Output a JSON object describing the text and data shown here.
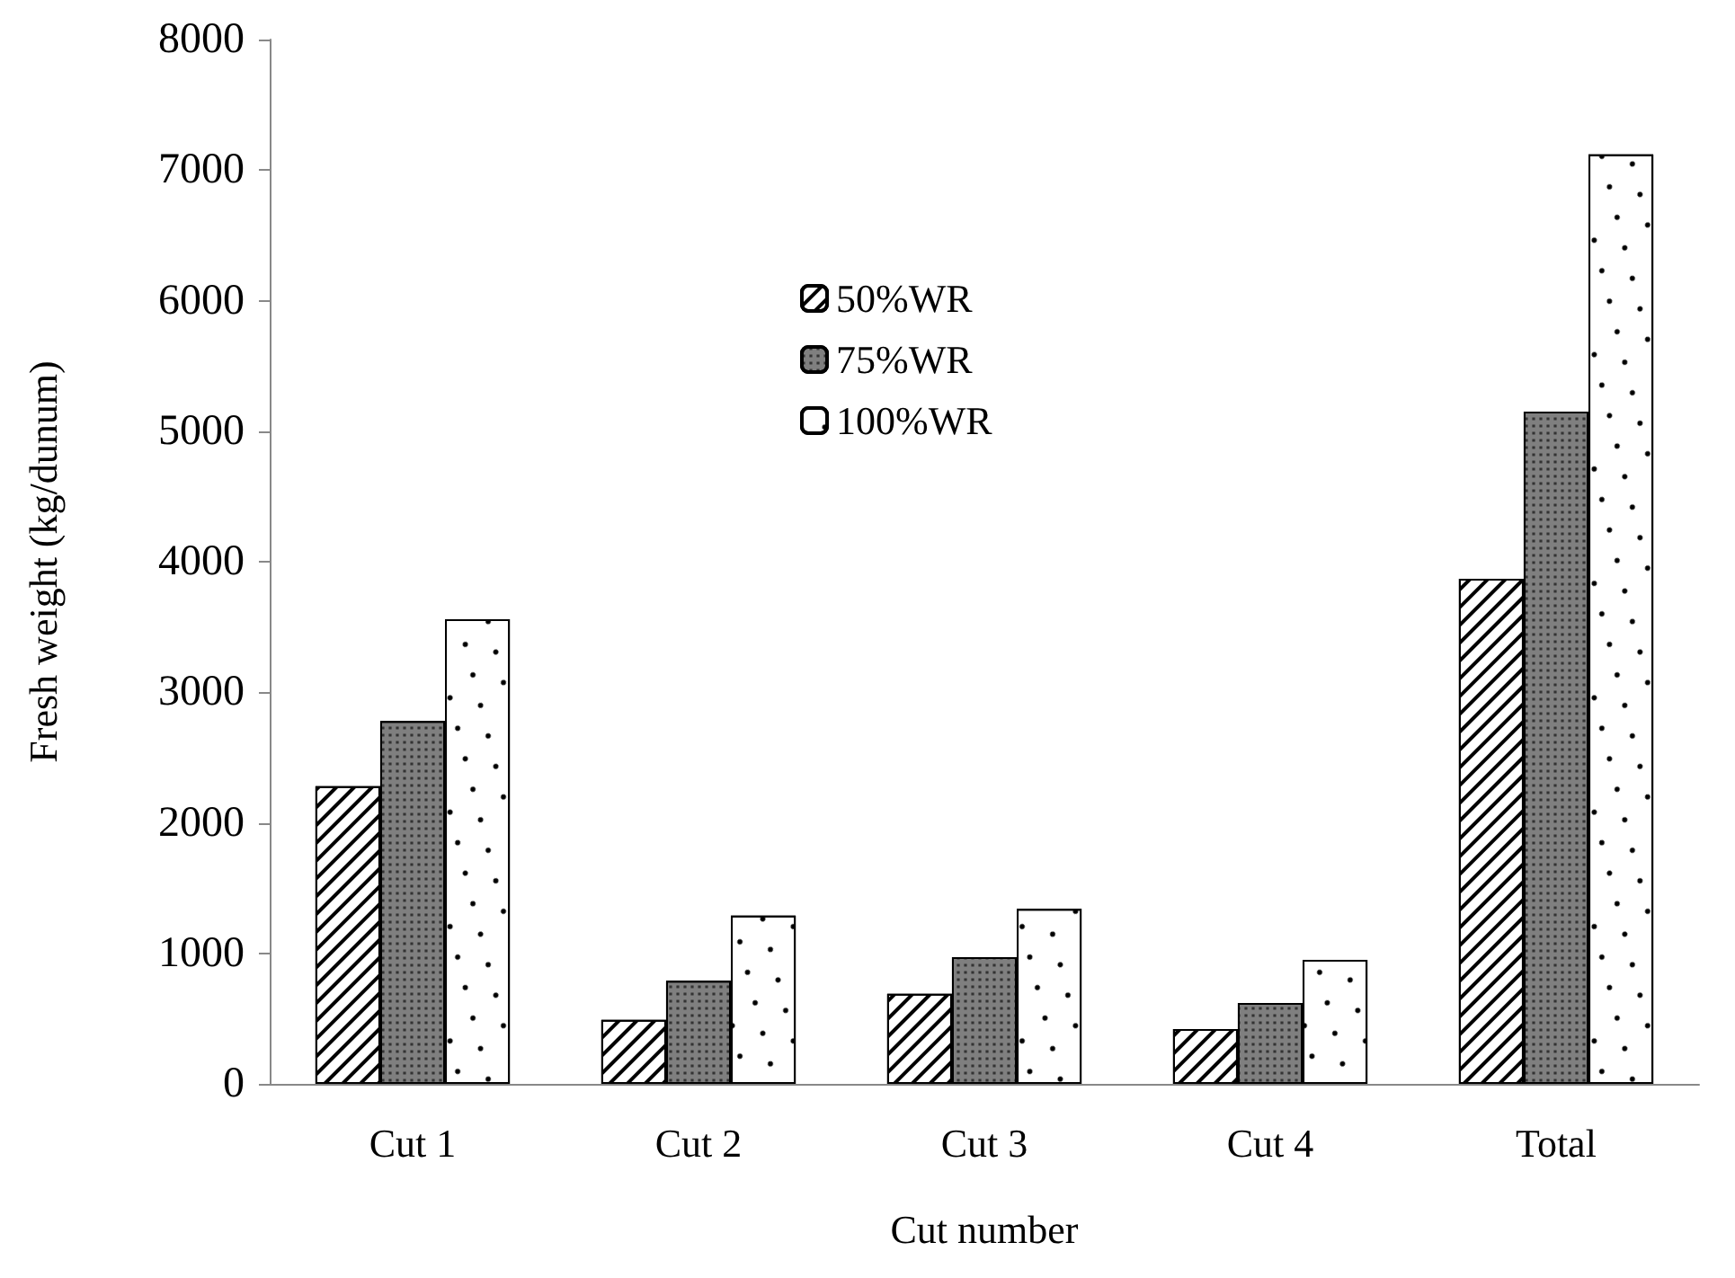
{
  "chart_data": {
    "type": "bar",
    "xlabel": "Cut number",
    "ylabel": "Fresh weight (kg/dunum)",
    "categories": [
      "Cut 1",
      "Cut 2",
      "Cut 3",
      "Cut 4",
      "Total"
    ],
    "series": [
      {
        "name": "50%WR",
        "color": "#ffffff",
        "values": [
          2280,
          490,
          690,
          420,
          3870
        ]
      },
      {
        "name": "75%WR",
        "color": "#7f7f7f",
        "values": [
          2780,
          790,
          970,
          620,
          5150
        ]
      },
      {
        "name": "100%WR",
        "color": "#ffffff",
        "values": [
          3560,
          1290,
          1340,
          950,
          7120
        ]
      }
    ],
    "ylim": [
      0,
      8000
    ],
    "yticks": [
      0,
      1000,
      2000,
      3000,
      4000,
      5000,
      6000,
      7000,
      8000
    ],
    "grid": false,
    "legend": "top"
  }
}
